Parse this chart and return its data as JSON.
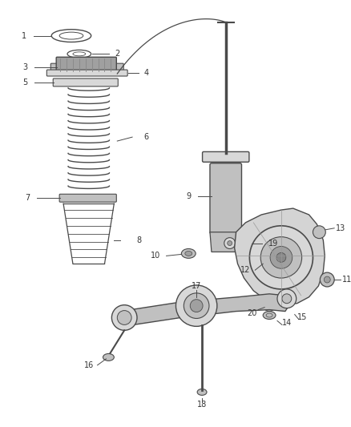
{
  "bg_color": "#ffffff",
  "line_color": "#4a4a4a",
  "text_color": "#333333",
  "fill_light": "#d8d8d8",
  "fill_mid": "#c0c0c0",
  "fill_dark": "#a0a0a0",
  "figsize": [
    4.38,
    5.33
  ],
  "dpi": 100
}
